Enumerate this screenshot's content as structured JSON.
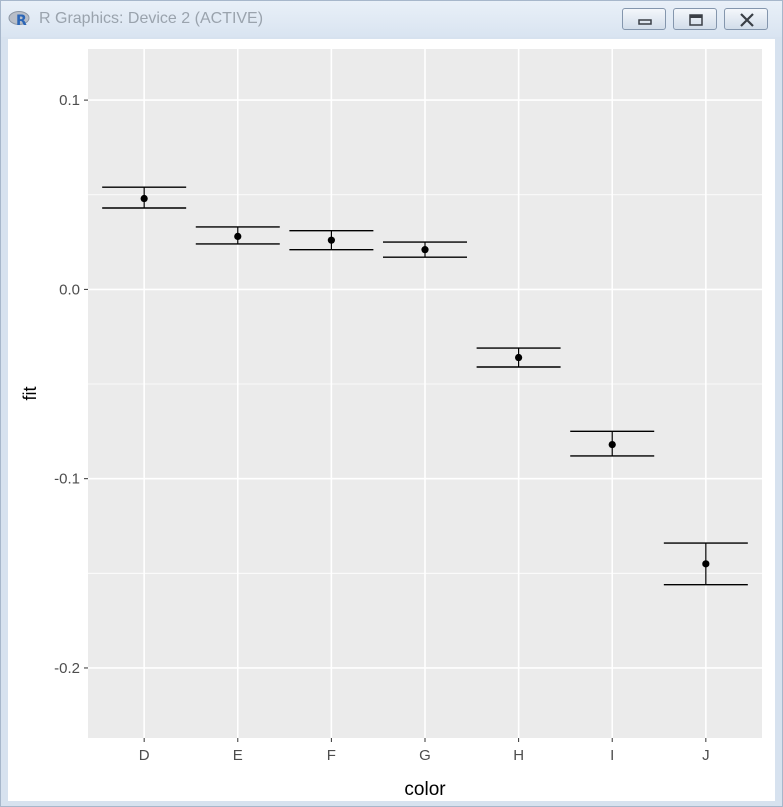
{
  "window": {
    "title": "R Graphics: Device 2 (ACTIVE)",
    "icon": "r-logo-icon",
    "buttons": [
      "minimize-icon",
      "restore-icon",
      "close-icon"
    ]
  },
  "chart_data": {
    "type": "errorbar",
    "xlabel": "color",
    "ylabel": "fit",
    "categories": [
      "D",
      "E",
      "F",
      "G",
      "H",
      "I",
      "J"
    ],
    "values": [
      0.048,
      0.028,
      0.026,
      0.021,
      -0.036,
      -0.082,
      -0.145
    ],
    "lower": [
      0.043,
      0.024,
      0.021,
      0.017,
      -0.041,
      -0.088,
      -0.156
    ],
    "upper": [
      0.054,
      0.033,
      0.031,
      0.025,
      -0.031,
      -0.075,
      -0.134
    ],
    "yticks": [
      "0.1",
      "0.0",
      "-0.1",
      "-0.2"
    ],
    "ytick_values": [
      0.1,
      0.0,
      -0.1,
      -0.2
    ],
    "ylim": [
      -0.237,
      0.127
    ],
    "grid": true,
    "colors": {
      "panel": "#ebebeb",
      "grid": "#ffffff",
      "marks": "#000000",
      "text": "#4d4d4d"
    }
  }
}
